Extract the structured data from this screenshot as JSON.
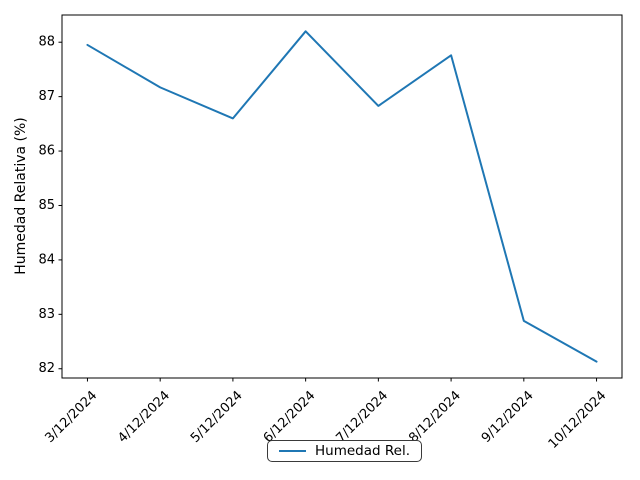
{
  "figure": {
    "background": "#ffffff",
    "spine_color": "#000000",
    "text_color": "#000000"
  },
  "chart_data": {
    "type": "line",
    "title": "",
    "xlabel": "",
    "ylabel": "Humedad Relativa (%)",
    "x": [
      "3/12/2024",
      "4/12/2024",
      "5/12/2024",
      "6/12/2024",
      "7/12/2024",
      "8/12/2024",
      "9/12/2024",
      "10/12/2024"
    ],
    "series": [
      {
        "name": "Humedad Rel.",
        "color": "#1f77b4",
        "values": [
          87.95,
          87.17,
          86.6,
          88.2,
          86.83,
          87.76,
          82.88,
          82.13
        ]
      }
    ],
    "yticks": [
      82,
      83,
      84,
      85,
      86,
      87,
      88
    ],
    "ylim": [
      81.83,
      88.5
    ],
    "grid": false,
    "legend": {
      "label": "Humedad Rel.",
      "position": "bottom-center"
    }
  }
}
